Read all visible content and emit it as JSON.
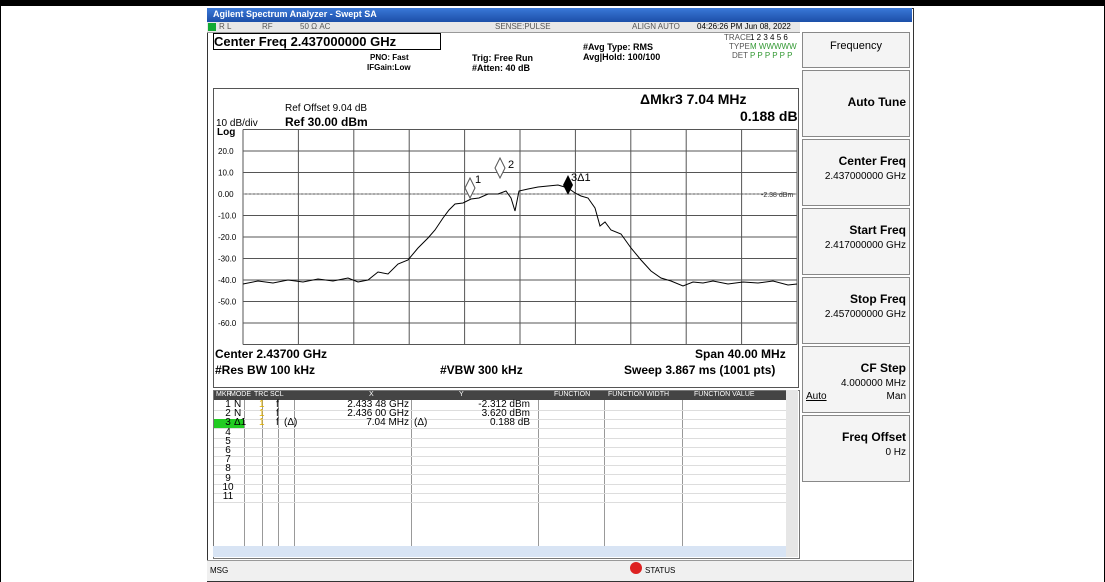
{
  "title_bar": {
    "title": "Agilent Spectrum Analyzer - Swept SA"
  },
  "status_bar": {
    "rl": "R L",
    "rf": "RF",
    "impedance": "50 Ω  AC",
    "sense": "SENSE:PULSE",
    "align": "ALIGN AUTO",
    "datetime": "04:26:26 PM Jun 08, 2022"
  },
  "header": {
    "center_freq": "Center Freq 2.437000000 GHz",
    "pno": "PNO: Fast",
    "ifgain": "IFGain:Low",
    "trig": "Trig: Free Run",
    "atten": "#Atten: 40 dB",
    "avg_type": "#Avg Type: RMS",
    "avg_hold": "Avg|Hold: 100/100",
    "trace_label": "TRACE",
    "trace_nums": "1 2 3 4 5 6",
    "type_label": "TYPE",
    "type_vals": "M WWWWW",
    "det_label": "DET",
    "det_vals": "P P P P P P"
  },
  "graph": {
    "ref_offset": "Ref Offset 9.04 dB",
    "scale": "10 dB/div",
    "ref_level": "Ref 30.00 dBm",
    "log": "Log",
    "marker_readout": "ΔMkr3 7.04 MHz",
    "marker_delta": "0.188 dB",
    "display_line": "-2.38 dBm",
    "y_labels": [
      "20.0",
      "10.0",
      "0.00",
      "-10.0",
      "-20.0",
      "-30.0",
      "-40.0",
      "-50.0",
      "-60.0"
    ],
    "marker_labels": [
      "1",
      "2",
      "3Δ1"
    ]
  },
  "footer": {
    "center": "Center 2.43700 GHz",
    "span": "Span 40.00 MHz",
    "rbw": "#Res BW 100 kHz",
    "vbw": "#VBW 300 kHz",
    "sweep": "Sweep  3.867 ms (1001 pts)"
  },
  "marker_table": {
    "headers": [
      "MKR",
      "MODE",
      "TRC",
      "SCL",
      "X",
      "Y",
      "FUNCTION",
      "FUNCTION WIDTH",
      "FUNCTION VALUE"
    ],
    "rows": [
      [
        "1",
        "N",
        "1",
        "f",
        "",
        "2.433 48 GHz",
        "",
        "-2.312 dBm"
      ],
      [
        "2",
        "N",
        "1",
        "f",
        "",
        "2.436 00 GHz",
        "",
        "3.620 dBm"
      ],
      [
        "3",
        "Δ1",
        "1",
        "f",
        "(Δ)",
        "7.04 MHz",
        "(Δ)",
        "0.188 dB"
      ],
      [
        "4"
      ],
      [
        "5"
      ],
      [
        "6"
      ],
      [
        "7"
      ],
      [
        "8"
      ],
      [
        "9"
      ],
      [
        "10"
      ],
      [
        "11"
      ]
    ]
  },
  "msg_bar": {
    "msg": "MSG",
    "status": "STATUS"
  },
  "softkeys": {
    "menu": "Frequency",
    "keys": [
      {
        "label": "Auto Tune"
      },
      {
        "label": "Center Freq",
        "value": "2.437000000 GHz"
      },
      {
        "label": "Start Freq",
        "value": "2.417000000 GHz"
      },
      {
        "label": "Stop Freq",
        "value": "2.457000000 GHz"
      },
      {
        "label": "CF Step",
        "value": "4.000000 MHz",
        "auto": "Auto",
        "man": "Man"
      },
      {
        "label": "Freq Offset",
        "value": "0 Hz"
      }
    ]
  }
}
